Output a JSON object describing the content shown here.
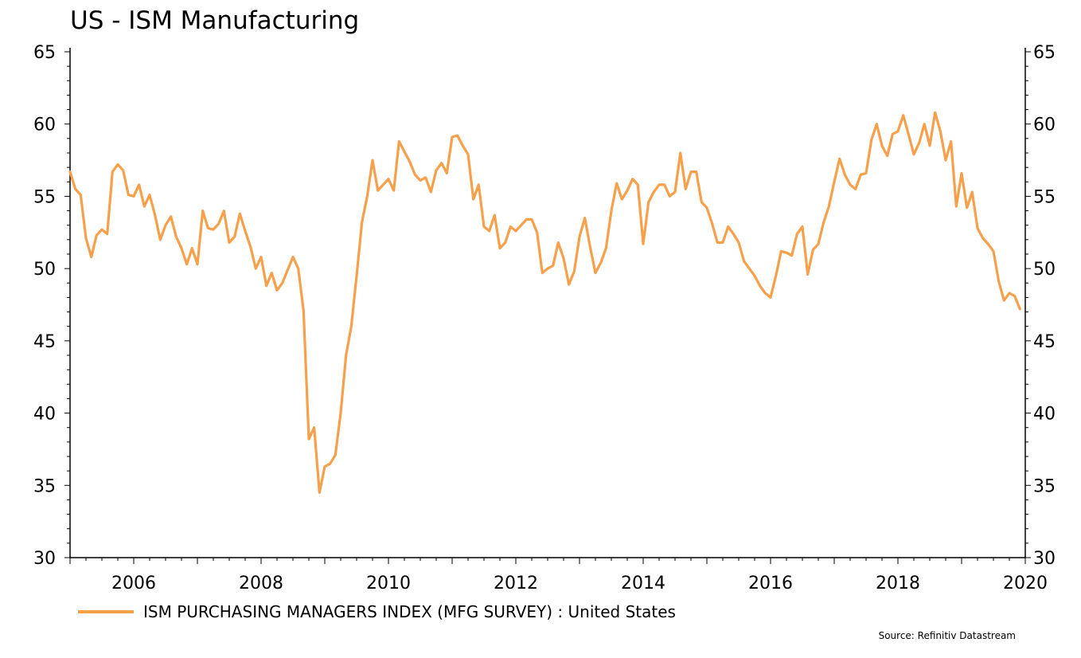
{
  "title": "US - ISM Manufacturing",
  "source": "Source: Refinitiv Datastream",
  "colors": {
    "series": "#F7A04B",
    "axis": "#000000",
    "background": "#FFFFFF"
  },
  "chart_data": {
    "type": "line",
    "title": "US - ISM Manufacturing",
    "xlabel": "",
    "ylabel": "",
    "xlim": [
      2005,
      2020
    ],
    "ylim": [
      30,
      65
    ],
    "y_ticks": [
      30,
      35,
      40,
      45,
      50,
      55,
      60,
      65
    ],
    "x_ticks": [
      "2006",
      "2008",
      "2010",
      "2012",
      "2014",
      "2016",
      "2018",
      "2020"
    ],
    "grid": false,
    "legend": "bottom-left",
    "dual_y_axis": true,
    "x_frequency": "monthly",
    "x_start": "2005-01",
    "series": [
      {
        "name": "ISM PURCHASING MANAGERS INDEX (MFG SURVEY) : United States",
        "values": [
          56.7,
          55.5,
          55.1,
          52.1,
          50.8,
          52.3,
          52.7,
          52.4,
          56.7,
          57.2,
          56.8,
          55.1,
          55.0,
          55.8,
          54.3,
          55.1,
          53.7,
          52.0,
          53.0,
          53.6,
          52.2,
          51.4,
          50.3,
          51.4,
          50.3,
          54.0,
          52.8,
          52.7,
          53.1,
          54.0,
          51.8,
          52.2,
          53.8,
          52.6,
          51.5,
          50.0,
          50.8,
          48.8,
          49.7,
          48.5,
          49.0,
          49.9,
          50.8,
          50.0,
          47.1,
          38.2,
          39.0,
          34.5,
          36.3,
          36.5,
          37.1,
          40.0,
          44.0,
          46.0,
          49.5,
          53.2,
          55.0,
          57.5,
          55.4,
          55.8,
          56.2,
          55.4,
          58.8,
          58.1,
          57.4,
          56.5,
          56.1,
          56.3,
          55.3,
          56.8,
          57.3,
          56.6,
          59.1,
          59.2,
          58.5,
          57.9,
          54.8,
          55.8,
          52.9,
          52.6,
          53.7,
          51.4,
          51.8,
          52.9,
          52.6,
          53.0,
          53.4,
          53.4,
          52.5,
          49.7,
          50.0,
          50.2,
          51.8,
          50.7,
          48.9,
          49.8,
          52.2,
          53.5,
          51.5,
          49.7,
          50.4,
          51.4,
          54.0,
          55.9,
          54.8,
          55.4,
          56.2,
          55.8,
          51.7,
          54.6,
          55.3,
          55.8,
          55.8,
          55.0,
          55.3,
          58.0,
          55.5,
          56.7,
          56.7,
          54.6,
          54.2,
          53.1,
          51.8,
          51.8,
          52.9,
          52.4,
          51.8,
          50.5,
          50.0,
          49.5,
          48.8,
          48.3,
          48.0,
          49.5,
          51.2,
          51.1,
          50.9,
          52.4,
          52.9,
          49.6,
          51.3,
          51.7,
          53.2,
          54.3,
          56.0,
          57.6,
          56.5,
          55.8,
          55.5,
          56.5,
          56.6,
          58.9,
          60.0,
          58.5,
          57.8,
          59.3,
          59.5,
          60.6,
          59.3,
          57.9,
          58.7,
          60.0,
          58.5,
          60.8,
          59.5,
          57.5,
          58.8,
          54.3,
          56.6,
          54.2,
          55.3,
          52.8,
          52.1,
          51.7,
          51.2,
          49.1,
          47.8,
          48.3,
          48.1,
          47.2
        ]
      }
    ]
  }
}
